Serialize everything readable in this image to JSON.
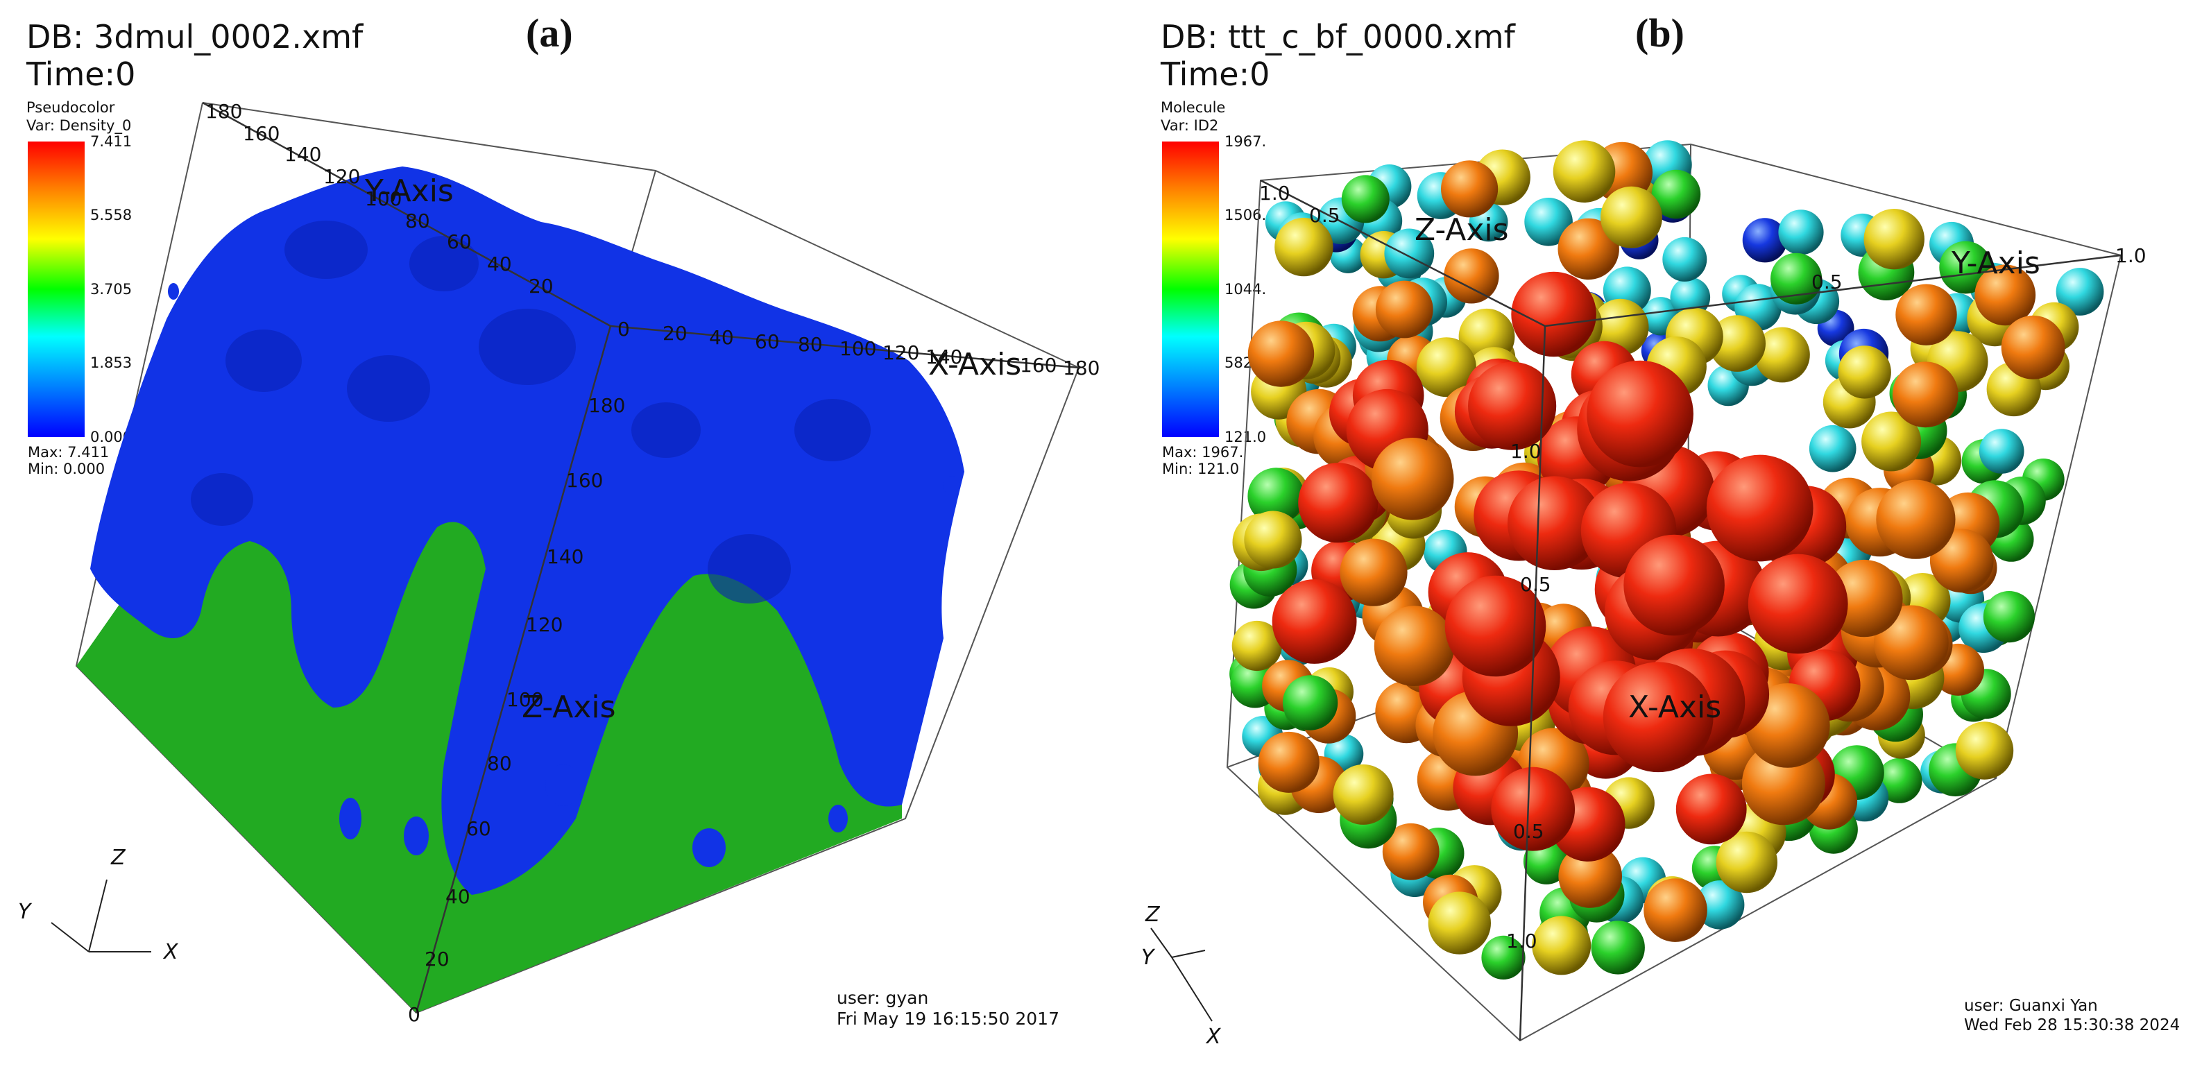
{
  "panel_a": {
    "db_label": "DB: 3dmul_0002.xmf",
    "time_label": "Time:0",
    "panel_letter": "(a)",
    "legend": {
      "plot_type": "Pseudocolor",
      "variable": "Var: Density_0",
      "ticks": [
        "7.411",
        "5.558",
        "3.705",
        "1.853",
        "0.000"
      ],
      "max": "Max:  7.411",
      "min": "Min:  0.000"
    },
    "axes": {
      "x_title": "X-Axis",
      "y_title": "Y-Axis",
      "z_title": "Z-Axis",
      "z_ticks": [
        "0",
        "20",
        "40",
        "60",
        "80",
        "100",
        "120",
        "140",
        "160",
        "180"
      ],
      "y_ticks": [
        "180",
        "160",
        "140",
        "120",
        "100",
        "80",
        "60",
        "40",
        "20"
      ],
      "x_ticks": [
        "0",
        "20",
        "40",
        "60",
        "80",
        "100",
        "120",
        "140",
        "160",
        "180"
      ]
    },
    "triad": {
      "x": "X",
      "y": "Y",
      "z": "Z"
    },
    "user": "user: gyan",
    "date": "Fri May 19 16:15:50 2017",
    "colors": {
      "surface": "#1133e6",
      "fluid": "#22aa22"
    }
  },
  "panel_b": {
    "db_label": "DB: ttt_c_bf_0000.xmf",
    "time_label": "Time:0",
    "panel_letter": "(b)",
    "legend": {
      "plot_type": "Molecule",
      "variable": "Var: ID2",
      "ticks": [
        "1967.",
        "1506.",
        "1044.",
        "582.5",
        "121.0"
      ],
      "max": "Max:  1967.",
      "min": "Min:  121.0"
    },
    "axes": {
      "x_title": "X-Axis",
      "y_title": "Y-Axis",
      "z_title": "Z-Axis",
      "z_ticks": [
        "1.0",
        "0.5"
      ],
      "y_ticks": [
        "0.5",
        "1.0"
      ],
      "x_ticks": [
        "1.0",
        "0.5",
        "0.5",
        "1.0"
      ]
    },
    "triad": {
      "x": "X",
      "y": "Y",
      "z": "Z"
    },
    "user": "user: Guanxi Yan",
    "date": "Wed Feb 28 15:30:38 2024"
  }
}
